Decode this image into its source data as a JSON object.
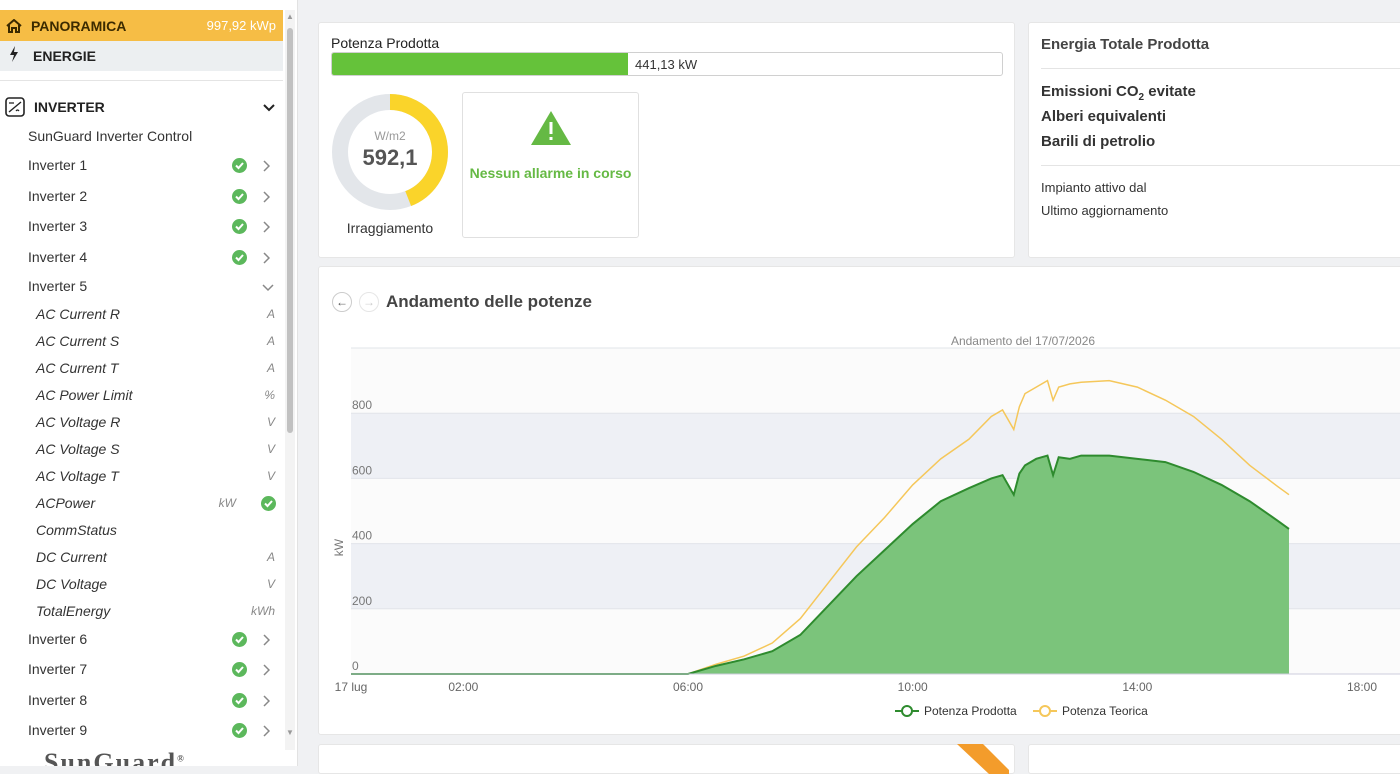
{
  "sidebar": {
    "panoramica_label": "PANORAMICA",
    "panoramica_peak": "997,92 kWp",
    "energie_label": "ENERGIE",
    "inverter_section_label": "INVERTER",
    "control_label": "SunGuard Inverter Control",
    "inverters_top": [
      {
        "label": "Inverter 1"
      },
      {
        "label": "Inverter 2"
      },
      {
        "label": "Inverter 3"
      },
      {
        "label": "Inverter 4"
      }
    ],
    "inverter5_label": "Inverter 5",
    "inverter5_params": [
      {
        "label": "AC Current R",
        "unit": "A"
      },
      {
        "label": "AC Current S",
        "unit": "A"
      },
      {
        "label": "AC Current T",
        "unit": "A"
      },
      {
        "label": "AC Power Limit",
        "unit": "%"
      },
      {
        "label": "AC Voltage R",
        "unit": "V"
      },
      {
        "label": "AC Voltage S",
        "unit": "V"
      },
      {
        "label": "AC Voltage T",
        "unit": "V"
      },
      {
        "label": "ACPower",
        "unit": "kW"
      },
      {
        "label": "CommStatus",
        "unit": ""
      },
      {
        "label": "DC Current",
        "unit": "A"
      },
      {
        "label": "DC Voltage",
        "unit": "V"
      },
      {
        "label": "TotalEnergy",
        "unit": "kWh"
      }
    ],
    "inverters_bottom": [
      {
        "label": "Inverter 6"
      },
      {
        "label": "Inverter 7"
      },
      {
        "label": "Inverter 8"
      },
      {
        "label": "Inverter 9"
      }
    ],
    "logo_text": "SunGuard",
    "logo_mark": "®"
  },
  "power_card": {
    "label": "Potenza Prodotta",
    "value": "441,13 kW",
    "fill_fraction": 0.442,
    "irradiance_unit": "W/m2",
    "irradiance_value": "592,1",
    "irradiance_fraction": 0.44,
    "irradiance_label": "Irraggiamento",
    "alarm_text": "Nessun allarme in corso"
  },
  "energy_card": {
    "title": "Energia Totale Prodotta",
    "co2_prefix": "Emissioni CO",
    "co2_sub": "2",
    "co2_suffix": " evitate",
    "trees": "Alberi equivalenti",
    "barrels": "Barili di petrolio",
    "active_since": "Impianto attivo dal",
    "last_update": "Ultimo aggiornamento"
  },
  "chart_card": {
    "title": "Andamento delle potenze",
    "prev_icon": "←",
    "next_icon": "→"
  },
  "colors": {
    "produced": "#2e8b2e",
    "produced_fill": "#7bc47b",
    "theoretical": "#f5c75a",
    "accent": "#f6bd45",
    "ok": "#5cb85c"
  },
  "chart_data": {
    "type": "area",
    "title": "Andamento del 17/07/2026",
    "xlabel": "",
    "ylabel": "kW",
    "x_ticks": [
      "17 lug",
      "02:00",
      "06:00",
      "10:00",
      "14:00",
      "18:00"
    ],
    "x_tick_hours": [
      0,
      2,
      6,
      10,
      14,
      18
    ],
    "y_ticks": [
      0,
      200,
      400,
      600,
      800
    ],
    "xlim": [
      0,
      18
    ],
    "ylim": [
      0,
      1000
    ],
    "grid": true,
    "legend": "bottom-center",
    "series": [
      {
        "name": "Potenza Prodotta",
        "x": [
          0,
          6.0,
          6.5,
          7.0,
          7.5,
          8.0,
          8.5,
          9.0,
          9.5,
          10.0,
          10.5,
          11.0,
          11.4,
          11.6,
          11.8,
          11.9,
          12.0,
          12.2,
          12.4,
          12.5,
          12.6,
          12.8,
          13.0,
          13.5,
          14.0,
          14.5,
          15.0,
          15.5,
          16.0,
          16.5,
          16.7
        ],
        "y": [
          0,
          0,
          25,
          45,
          70,
          120,
          210,
          300,
          380,
          460,
          530,
          570,
          600,
          610,
          550,
          615,
          640,
          660,
          670,
          610,
          665,
          660,
          670,
          670,
          660,
          650,
          620,
          580,
          530,
          470,
          445
        ]
      },
      {
        "name": "Potenza Teorica",
        "x": [
          0,
          6.0,
          6.5,
          7.0,
          7.5,
          8.0,
          8.5,
          9.0,
          9.5,
          10.0,
          10.5,
          11.0,
          11.4,
          11.6,
          11.8,
          11.9,
          12.0,
          12.2,
          12.4,
          12.5,
          12.6,
          12.8,
          13.0,
          13.5,
          14.0,
          14.5,
          15.0,
          15.5,
          16.0,
          16.5,
          16.7
        ],
        "y": [
          0,
          0,
          30,
          55,
          95,
          170,
          280,
          390,
          480,
          580,
          660,
          720,
          790,
          810,
          750,
          820,
          860,
          880,
          900,
          840,
          880,
          890,
          895,
          900,
          880,
          840,
          790,
          720,
          640,
          575,
          550
        ]
      }
    ]
  }
}
